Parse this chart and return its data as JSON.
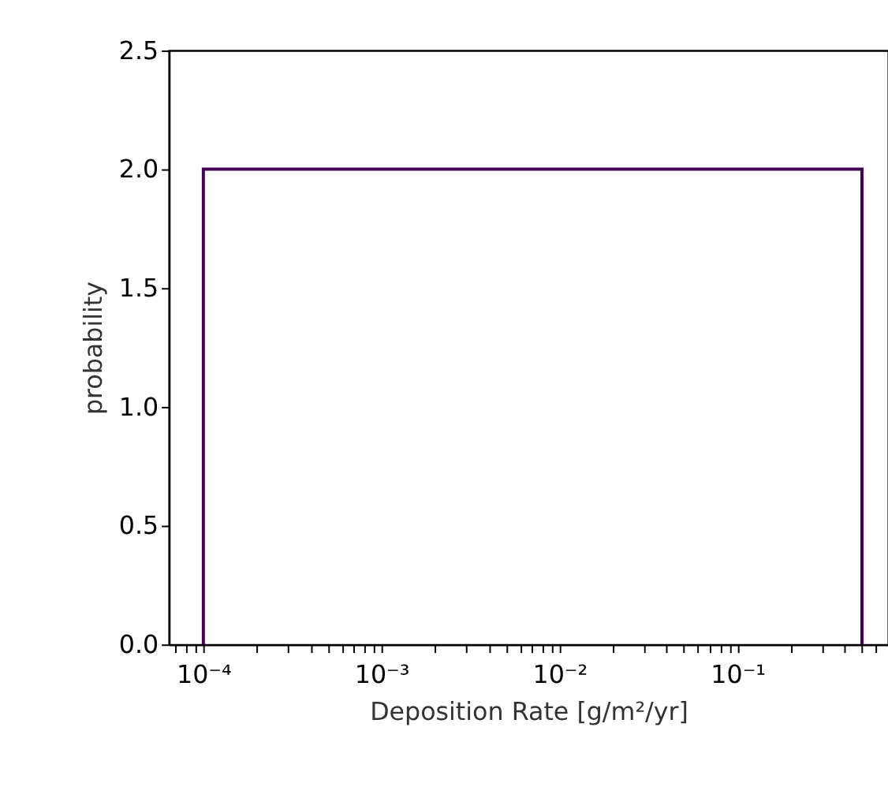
{
  "chart_data": {
    "type": "histogram",
    "xlabel": "Deposition Rate [g/m²/yr]",
    "ylabel": "probability",
    "bins": [
      0.0001,
      0.5
    ],
    "series": [
      {
        "color": "#440154",
        "values": [
          2
        ]
      }
    ],
    "log": "x",
    "xlim": [
      6.4e-05,
      0.7
    ],
    "ylim": [
      0,
      2.5
    ],
    "xticks": [
      {
        "value": 7e-05,
        "label": null
      },
      {
        "value": 8e-05,
        "label": null
      },
      {
        "value": 9e-05,
        "label": null
      },
      {
        "value": 0.0001,
        "label": "10⁻⁴"
      },
      {
        "value": 0.0002,
        "label": null
      },
      {
        "value": 0.0003,
        "label": null
      },
      {
        "value": 0.0004,
        "label": null
      },
      {
        "value": 0.0005,
        "label": null
      },
      {
        "value": 0.0006,
        "label": null
      },
      {
        "value": 0.0007,
        "label": null
      },
      {
        "value": 0.0008,
        "label": null
      },
      {
        "value": 0.0009,
        "label": null
      },
      {
        "value": 0.001,
        "label": "10⁻³"
      },
      {
        "value": 0.002,
        "label": null
      },
      {
        "value": 0.003,
        "label": null
      },
      {
        "value": 0.004,
        "label": null
      },
      {
        "value": 0.005,
        "label": null
      },
      {
        "value": 0.006,
        "label": null
      },
      {
        "value": 0.007,
        "label": null
      },
      {
        "value": 0.008,
        "label": null
      },
      {
        "value": 0.009,
        "label": null
      },
      {
        "value": 0.01,
        "label": "10⁻²"
      },
      {
        "value": 0.02,
        "label": null
      },
      {
        "value": 0.03,
        "label": null
      },
      {
        "value": 0.04,
        "label": null
      },
      {
        "value": 0.05,
        "label": null
      },
      {
        "value": 0.06,
        "label": null
      },
      {
        "value": 0.07,
        "label": null
      },
      {
        "value": 0.08,
        "label": null
      },
      {
        "value": 0.09,
        "label": null
      },
      {
        "value": 0.1,
        "label": "10⁻¹"
      },
      {
        "value": 0.2,
        "label": null
      },
      {
        "value": 0.3,
        "label": null
      },
      {
        "value": 0.4,
        "label": null
      },
      {
        "value": 0.5,
        "label": null
      },
      {
        "value": 0.6,
        "label": null
      }
    ],
    "yticks": [
      {
        "value": 0,
        "label": "0.0"
      },
      {
        "value": 0.5,
        "label": "0.5"
      },
      {
        "value": 1,
        "label": "1.0"
      },
      {
        "value": 1.5,
        "label": "1.5"
      },
      {
        "value": 2,
        "label": "2.0"
      },
      {
        "value": 2.5,
        "label": "2.5"
      }
    ],
    "grid": false,
    "legend": false,
    "line_style": "solid"
  }
}
